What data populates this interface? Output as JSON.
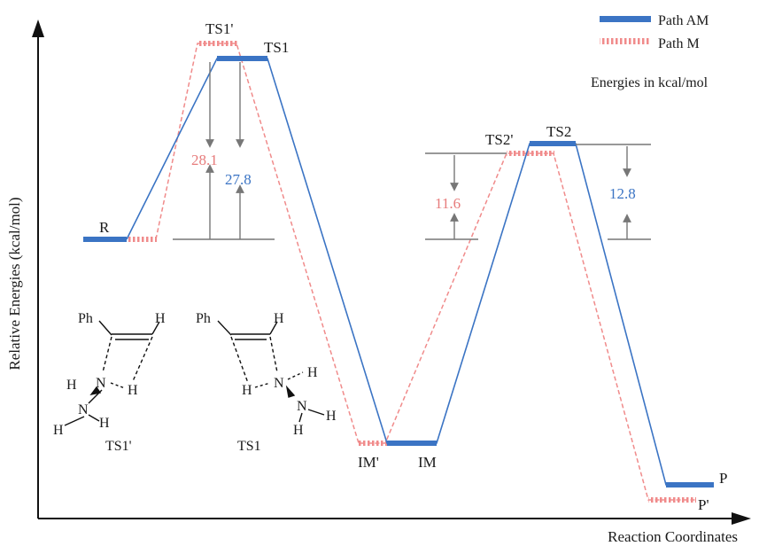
{
  "axes": {
    "y_title": "Relative Energies (kcal/mol)",
    "x_title": "Reaction Coordinates"
  },
  "legend": {
    "path_am": "Path AM",
    "path_m": "Path M",
    "note": "Energies in kcal/mol"
  },
  "colors": {
    "path_am": "#3b74c4",
    "path_m": "#f08b8b",
    "guide": "#777777",
    "axis": "#111111"
  },
  "states": {
    "r": "R",
    "ts1": "TS1",
    "ts1p": "TS1'",
    "im": "IM",
    "imp": "IM'",
    "ts2": "TS2",
    "ts2p": "TS2'",
    "p": "P",
    "pp": "P'"
  },
  "barriers": {
    "ts1_m": "28.1",
    "ts1_am": "27.8",
    "ts2_m": "11.6",
    "ts2_am": "12.8"
  },
  "structures": {
    "ts1p": {
      "caption": "TS1'",
      "ph": "Ph",
      "h_top": "H",
      "h_left": "H",
      "n1": "N",
      "h_right": "H",
      "n2": "N",
      "h_n2": "H",
      "h_bottom": "H"
    },
    "ts1": {
      "caption": "TS1",
      "ph": "Ph",
      "h_top": "H",
      "h_left": "H",
      "n1": "N",
      "h_right": "H",
      "n2": "N",
      "h_n2": "H",
      "h_bottom": "H"
    }
  }
}
